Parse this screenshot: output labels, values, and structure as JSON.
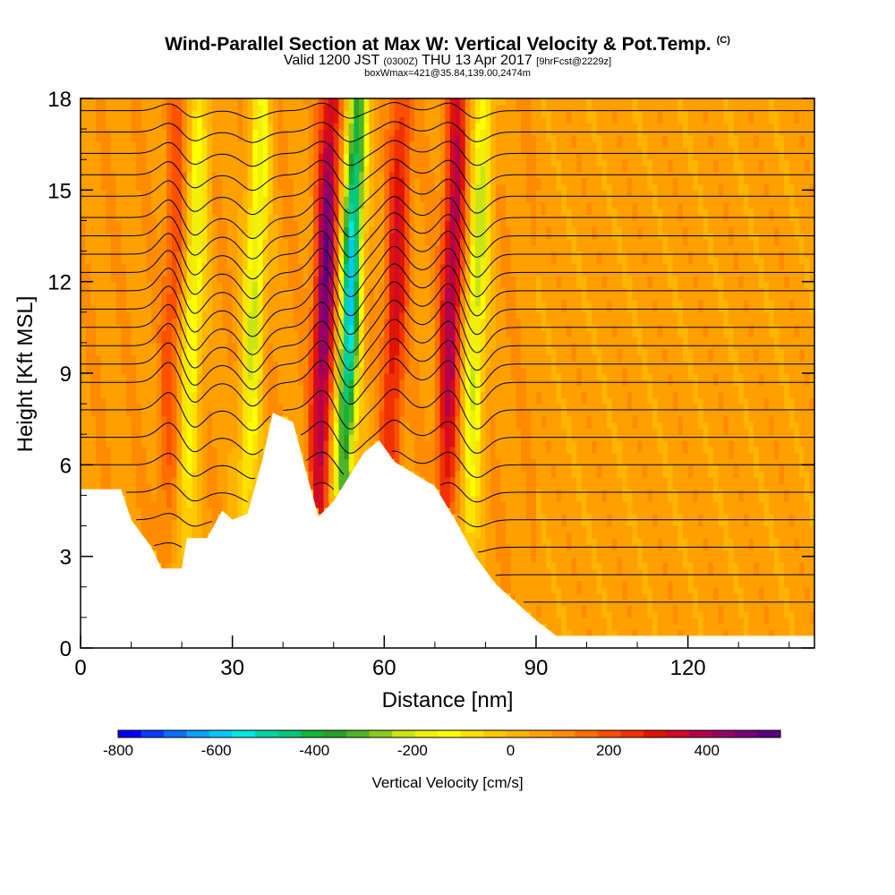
{
  "chart_data": {
    "type": "heatmap",
    "title": "Wind-Parallel Section at Max W: Vertical Velocity & Pot.Temp.",
    "title_mark": "(C)",
    "subtitle": {
      "valid": "Valid 1200 JST",
      "utc": "(0300Z)",
      "date": "THU 13 Apr 2017",
      "forecast": "[9hrFcst@2229z]"
    },
    "subtitle2": "boxWmax=421@35.84,139.00,2474m",
    "xlabel": "Distance [nm]",
    "ylabel": "Height [Kft MSL]",
    "xlim": [
      0,
      145
    ],
    "ylim": [
      0,
      18
    ],
    "x_ticks": [
      "0",
      "30",
      "60",
      "90",
      "120"
    ],
    "y_ticks": [
      "0",
      "3",
      "6",
      "9",
      "12",
      "15",
      "18"
    ],
    "colorbar": {
      "title": "Vertical Velocity [cm/s]",
      "min": -800,
      "max": 550,
      "tick_labels": [
        "-800",
        "-600",
        "-400",
        "-200",
        "0",
        "200",
        "400"
      ],
      "colors": [
        "#0000ff",
        "#0a3bff",
        "#0a6eff",
        "#0aa0ff",
        "#00c8ff",
        "#00e6e0",
        "#00d2a0",
        "#00c878",
        "#14b43c",
        "#28a028",
        "#50b428",
        "#8cc81e",
        "#c8e614",
        "#f0f00a",
        "#ffff00",
        "#ffe100",
        "#ffc800",
        "#ffb400",
        "#ffa000",
        "#ff8c00",
        "#ff6e00",
        "#ff5000",
        "#f03200",
        "#e01400",
        "#d20a28",
        "#b4004b",
        "#960064",
        "#780078",
        "#5a0082"
      ]
    },
    "terrain_kft": [
      [
        0,
        5.2
      ],
      [
        8,
        5.2
      ],
      [
        10,
        4.2
      ],
      [
        14,
        3.3
      ],
      [
        16,
        2.6
      ],
      [
        20,
        2.6
      ],
      [
        21,
        3.6
      ],
      [
        25,
        3.6
      ],
      [
        28,
        4.5
      ],
      [
        30,
        4.2
      ],
      [
        33,
        4.4
      ],
      [
        36,
        6.2
      ],
      [
        38,
        7.7
      ],
      [
        42,
        7.4
      ],
      [
        45,
        5.5
      ],
      [
        47,
        4.3
      ],
      [
        50,
        4.8
      ],
      [
        53,
        5.6
      ],
      [
        56,
        6.4
      ],
      [
        59,
        6.8
      ],
      [
        62,
        6.1
      ],
      [
        66,
        5.7
      ],
      [
        70,
        5.3
      ],
      [
        74,
        4.2
      ],
      [
        78,
        3.0
      ],
      [
        82,
        2.1
      ],
      [
        86,
        1.5
      ],
      [
        90,
        0.9
      ],
      [
        94,
        0.4
      ],
      [
        145,
        0.4
      ]
    ],
    "w_features": [
      {
        "x": 18,
        "type": "updraft",
        "peak_cm_s": 150
      },
      {
        "x": 22,
        "type": "downdraft",
        "peak_cm_s": -250
      },
      {
        "x": 34,
        "type": "downdraft",
        "peak_cm_s": -280
      },
      {
        "x": 48,
        "type": "updraft",
        "peak_cm_s": 421
      },
      {
        "x": 53,
        "type": "downdraft",
        "peak_cm_s": -650
      },
      {
        "x": 62,
        "type": "updraft",
        "peak_cm_s": 260
      },
      {
        "x": 73,
        "type": "updraft",
        "peak_cm_s": 350
      },
      {
        "x": 78,
        "type": "downdraft",
        "peak_cm_s": -300
      }
    ],
    "isentropes_kft": [
      1.5,
      2.4,
      3.3,
      4.2,
      5.1,
      6.0,
      6.9,
      7.8,
      8.7,
      9.3,
      9.9,
      10.5,
      11.1,
      11.7,
      12.3,
      12.9,
      13.5,
      14.1,
      14.8,
      15.5,
      16.2,
      16.9,
      17.6
    ]
  }
}
